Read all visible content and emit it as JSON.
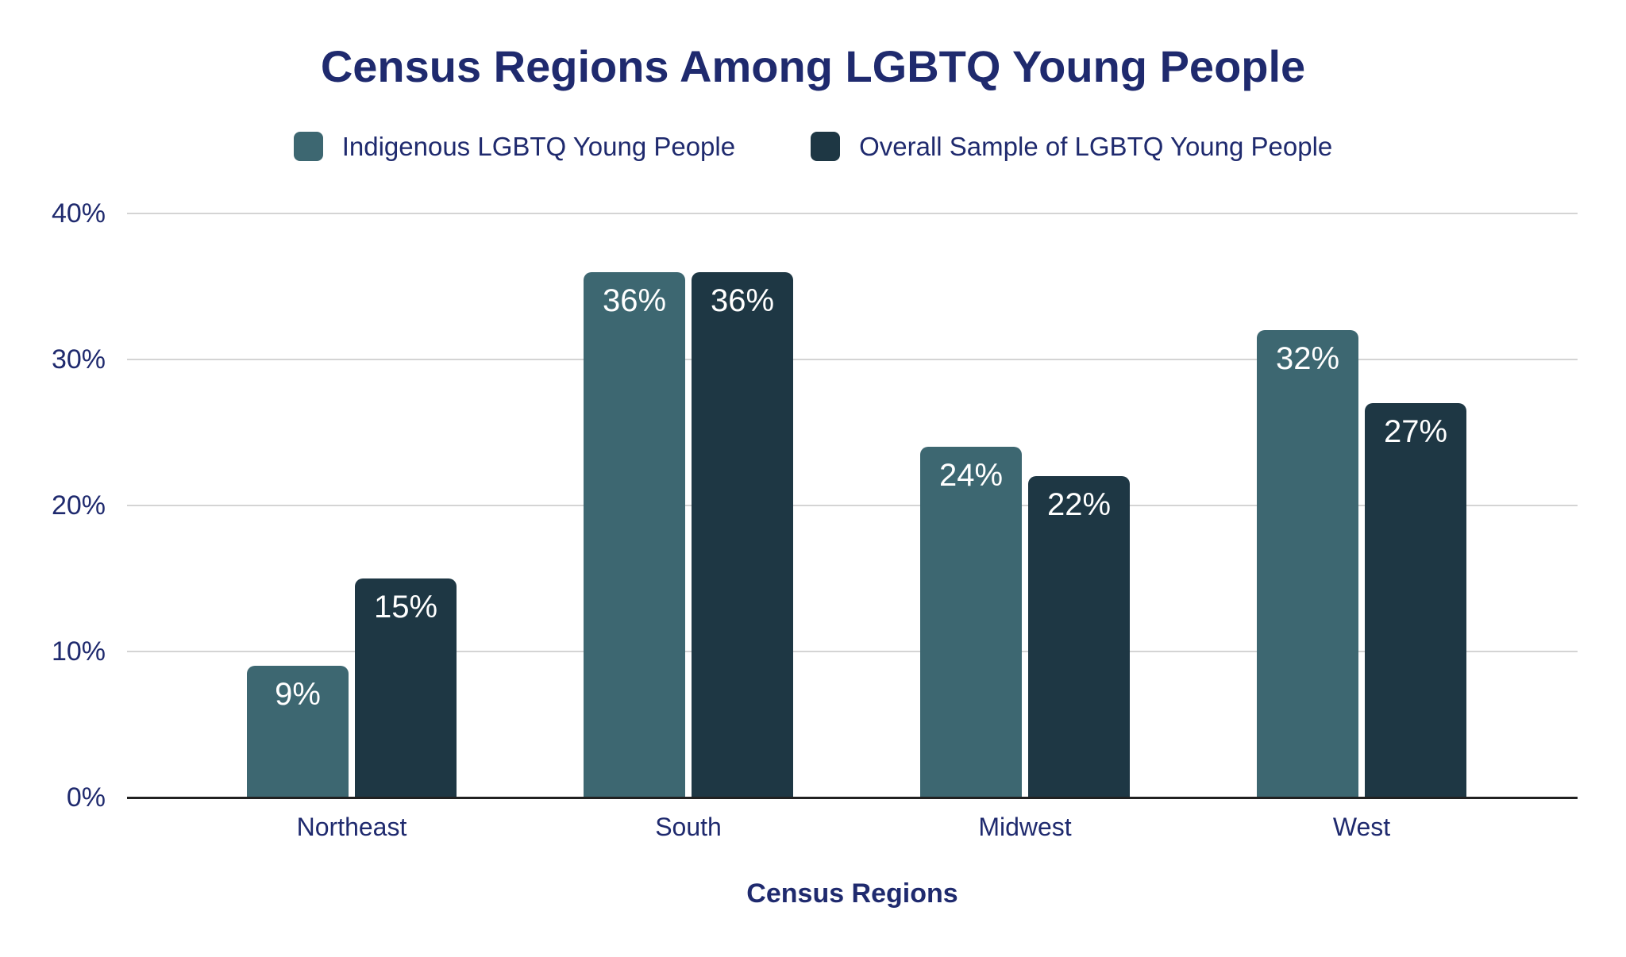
{
  "chart_data": {
    "type": "bar",
    "title": "Census Regions Among LGBTQ Young People",
    "xlabel": "Census Regions",
    "ylabel": "",
    "categories": [
      "Northeast",
      "South",
      "Midwest",
      "West"
    ],
    "series": [
      {
        "name": "Indigenous LGBTQ Young People",
        "color": "#3d6771",
        "values": [
          9,
          36,
          24,
          32
        ],
        "labels": [
          "9%",
          "36%",
          "24%",
          "32%"
        ]
      },
      {
        "name": "Overall Sample of LGBTQ Young People",
        "color": "#1e3744",
        "values": [
          15,
          36,
          22,
          27
        ],
        "labels": [
          "15%",
          "36%",
          "22%",
          "27%"
        ]
      }
    ],
    "y_axis": {
      "min": 0,
      "max": 40,
      "ticks": [
        {
          "value": 0,
          "label": "0%"
        },
        {
          "value": 10,
          "label": "10%"
        },
        {
          "value": 20,
          "label": "20%"
        },
        {
          "value": 30,
          "label": "30%"
        },
        {
          "value": 40,
          "label": "40%"
        }
      ]
    },
    "grid": "horizontal",
    "legend_position": "top",
    "colors": {
      "text_navy": "#1f2a6e",
      "gridline": "#d4d4d4",
      "axis_line": "#212121",
      "bar_value_label": "#ffffff",
      "background": "#ffffff"
    }
  }
}
